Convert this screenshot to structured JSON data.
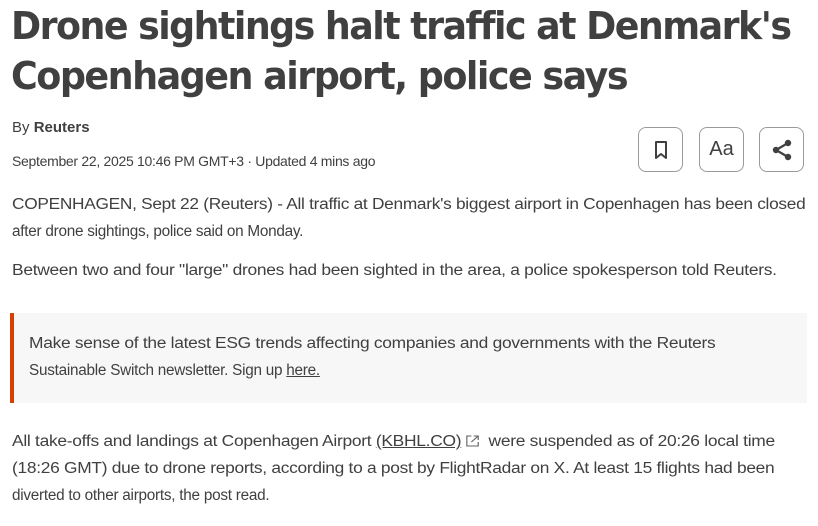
{
  "headline": {
    "lines": [
      "Drone sightings halt traffic at Denmark's",
      "Copenhagen airport, police says"
    ]
  },
  "byline": {
    "prefix": "By",
    "author": "Reuters"
  },
  "dateline": "September 22, 2025 10:46 PM GMT+3 · Updated 4 mins ago",
  "toolbar": {
    "icons": [
      "bookmark-icon",
      "text-size-icon",
      "share-icon"
    ],
    "text_size_label": "Aa"
  },
  "paragraphs": {
    "p1": [
      "COPENHAGEN, Sept 22 (Reuters) - All traffic at Denmark's biggest airport in Copenhagen has been closed",
      "after drone sightings, police said on Monday."
    ],
    "p2": "Between two and four \"large\" drones had been sighted in the area, a police spokesperson told Reuters.",
    "promo": {
      "line1": "Make sense of the latest ESG trends affecting companies and governments with the Reuters",
      "line2": "Sustainable Switch newsletter. Sign up ",
      "link": "here.",
      "accent": "#d64000"
    },
    "p3": {
      "before": "All take-offs and landings at Copenhagen Airport ",
      "link": "(KBHL.CO)",
      "after": " were suspended as of 20:26 local time",
      "line2": "(18:26 GMT) due to drone reports, according to a post by FlightRadar on X. At least 15 flights had been",
      "line3": "diverted to other airports, the post read."
    }
  }
}
